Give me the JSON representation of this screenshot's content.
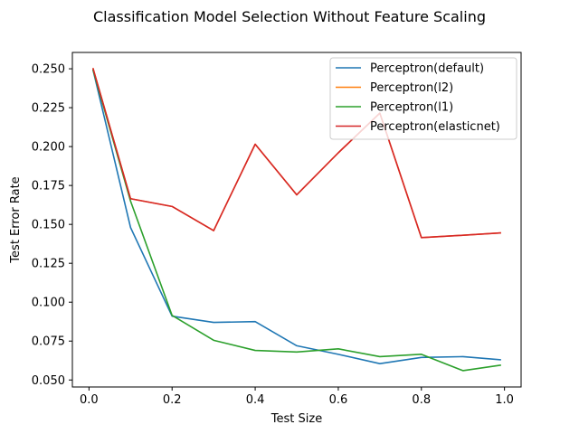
{
  "chart_data": {
    "type": "line",
    "title": "Classification Model Selection Without Feature Scaling",
    "xlabel": "Test Size",
    "ylabel": "Test Error Rate",
    "xlim": [
      -0.04,
      1.04
    ],
    "ylim": [
      0.0455,
      0.2605
    ],
    "xticks": [
      0.0,
      0.2,
      0.4,
      0.6,
      0.8,
      1.0
    ],
    "xtick_labels": [
      "0.0",
      "0.2",
      "0.4",
      "0.6",
      "0.8",
      "1.0"
    ],
    "yticks": [
      0.05,
      0.075,
      0.1,
      0.125,
      0.15,
      0.175,
      0.2,
      0.225,
      0.25
    ],
    "ytick_labels": [
      "0.050",
      "0.075",
      "0.100",
      "0.125",
      "0.150",
      "0.175",
      "0.200",
      "0.225",
      "0.250"
    ],
    "grid": false,
    "legend_position": "top-right",
    "x": [
      0.01,
      0.1,
      0.2,
      0.3,
      0.4,
      0.5,
      0.6,
      0.7,
      0.8,
      0.9,
      0.99
    ],
    "series": [
      {
        "name": "Perceptron(default)",
        "color": "#1f77b4",
        "values": [
          0.249,
          0.148,
          0.091,
          0.087,
          0.0875,
          0.072,
          0.0665,
          0.0605,
          0.0645,
          0.065,
          0.063
        ]
      },
      {
        "name": "Perceptron(l2)",
        "color": "#ff7f0e",
        "values": [
          0.25,
          0.1665,
          0.1615,
          0.146,
          0.2015,
          0.169,
          0.196,
          0.2215,
          0.1415,
          0.143,
          0.1445
        ]
      },
      {
        "name": "Perceptron(l1)",
        "color": "#2ca02c",
        "values": [
          0.249,
          0.165,
          0.0915,
          0.0755,
          0.069,
          0.068,
          0.07,
          0.065,
          0.0665,
          0.056,
          0.0595
        ]
      },
      {
        "name": "Perceptron(elasticnet)",
        "color": "#d62728",
        "values": [
          0.25,
          0.1665,
          0.1615,
          0.146,
          0.2015,
          0.169,
          0.196,
          0.2215,
          0.1415,
          0.143,
          0.1445
        ]
      }
    ]
  }
}
